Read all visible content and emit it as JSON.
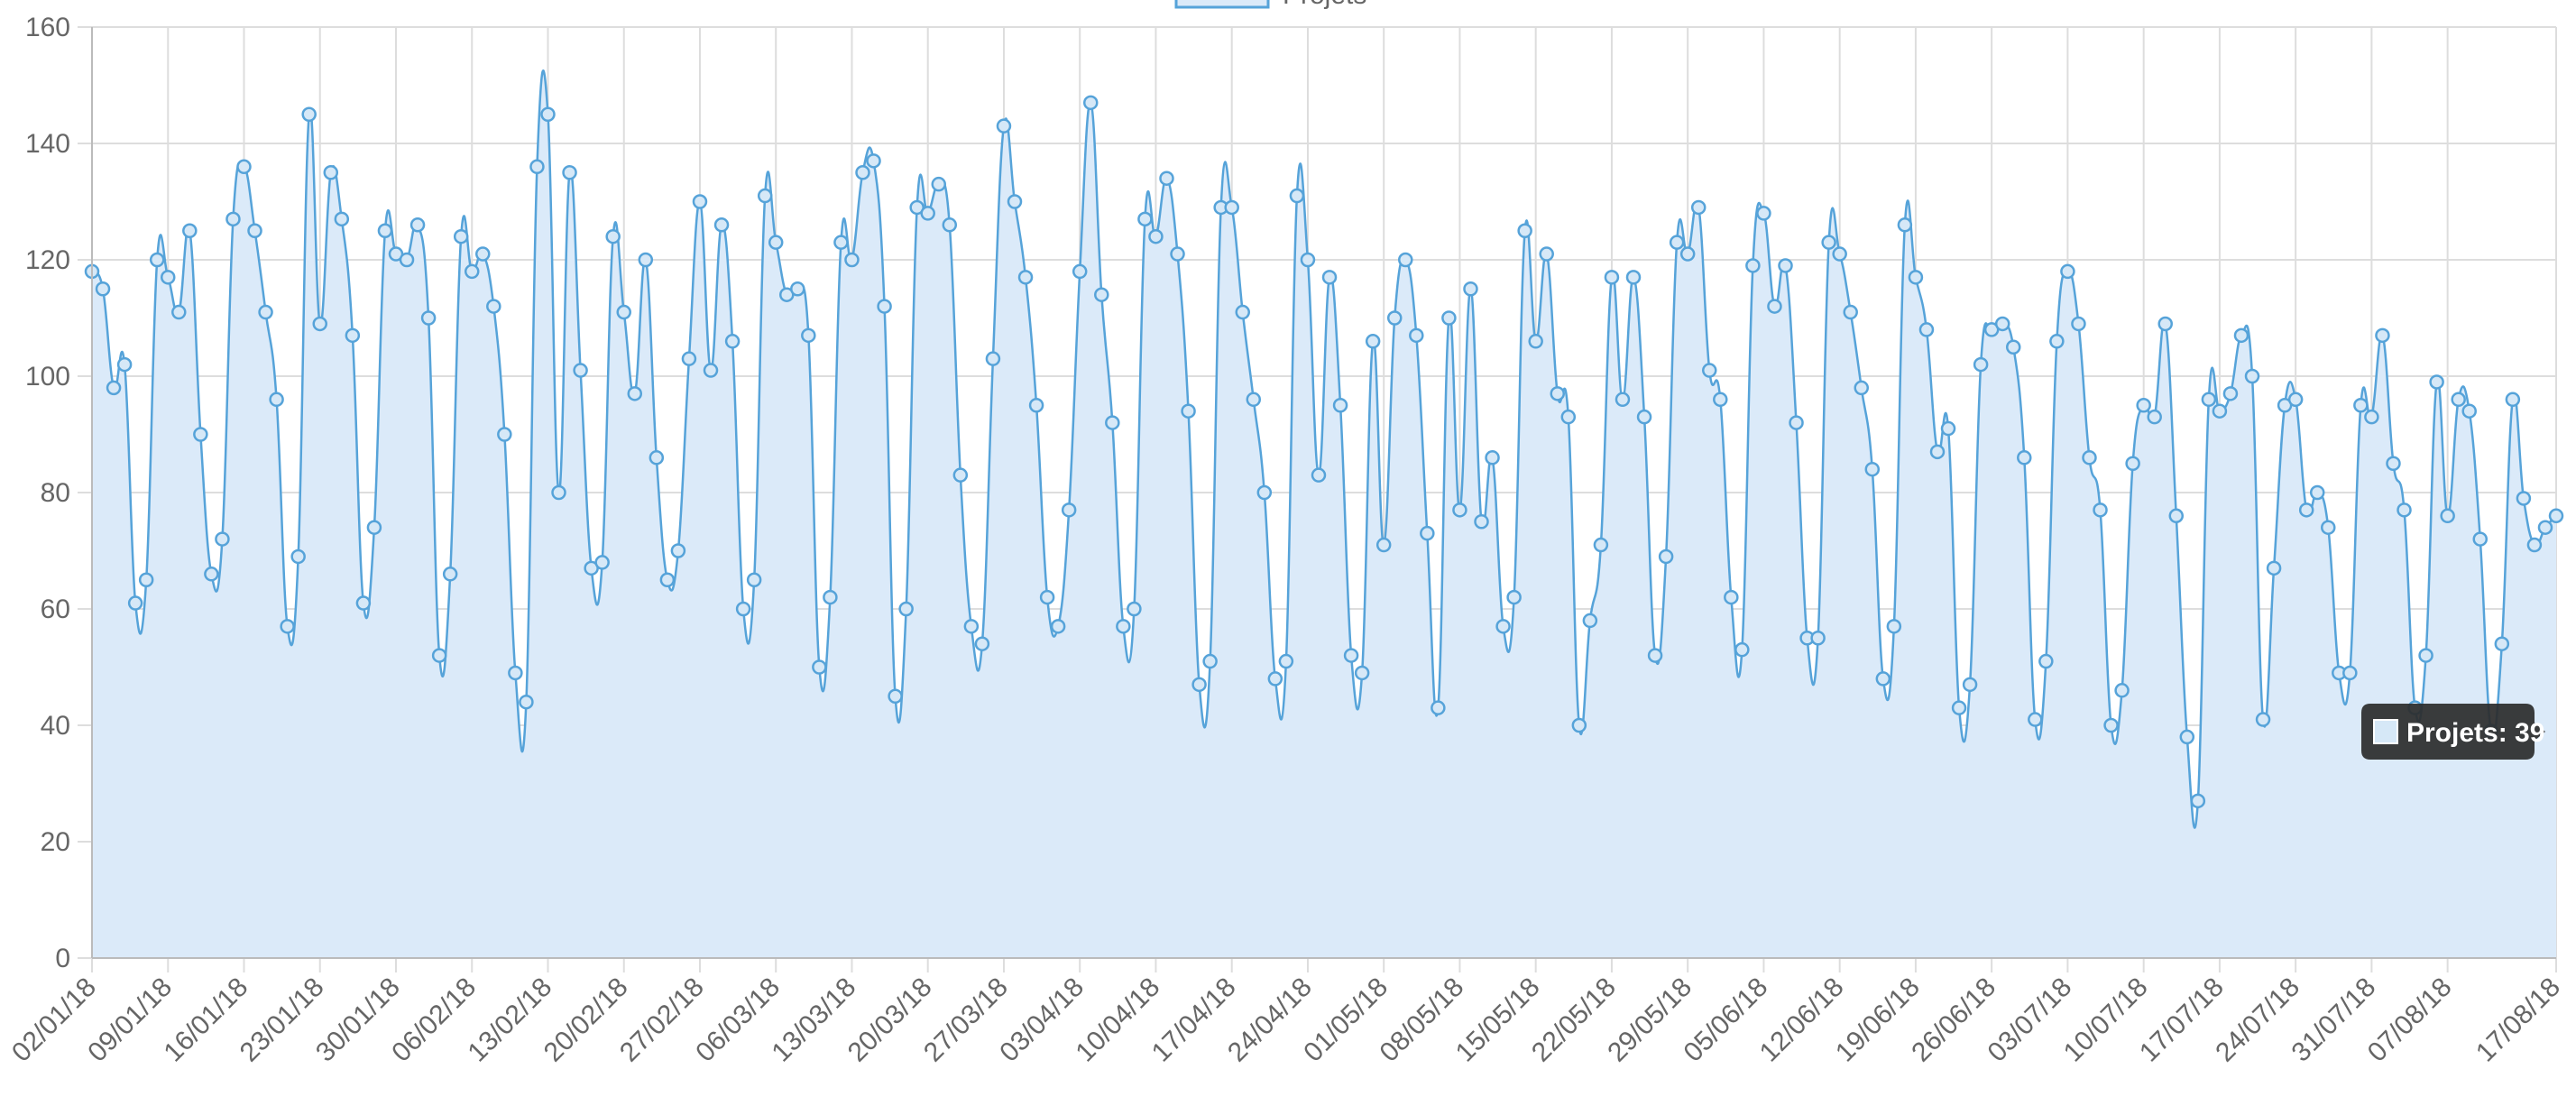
{
  "colors": {
    "line": "#56a3d9",
    "fill": "#dbeaf9",
    "point_fill": "#d6e8f7",
    "grid": "#dddddd",
    "axis_text": "#666666",
    "tooltip_bg": "#2b2b2b",
    "tooltip_text": "#ffffff"
  },
  "legend": {
    "label": "Projets",
    "position": "top-center"
  },
  "tooltip": {
    "text": "Projets: 39"
  },
  "chart_data": {
    "type": "area",
    "series": [
      {
        "name": "Projets",
        "values": [
          118,
          115,
          98,
          102,
          61,
          65,
          120,
          117,
          111,
          125,
          90,
          66,
          72,
          127,
          136,
          125,
          111,
          96,
          57,
          69,
          145,
          109,
          135,
          127,
          107,
          61,
          74,
          125,
          121,
          120,
          126,
          110,
          52,
          66,
          124,
          118,
          121,
          112,
          90,
          49,
          44,
          136,
          145,
          80,
          135,
          101,
          67,
          68,
          124,
          111,
          97,
          120,
          86,
          65,
          70,
          103,
          130,
          101,
          126,
          106,
          60,
          65,
          131,
          123,
          114,
          115,
          107,
          50,
          62,
          123,
          120,
          135,
          137,
          112,
          45,
          60,
          129,
          128,
          133,
          126,
          83,
          57,
          54,
          103,
          143,
          130,
          117,
          95,
          62,
          57,
          77,
          118,
          147,
          114,
          92,
          57,
          60,
          127,
          124,
          134,
          121,
          94,
          47,
          51,
          129,
          129,
          111,
          96,
          80,
          48,
          51,
          131,
          120,
          83,
          117,
          95,
          52,
          49,
          106,
          71,
          110,
          120,
          107,
          73,
          43,
          110,
          77,
          115,
          75,
          86,
          57,
          62,
          125,
          106,
          121,
          97,
          93,
          40,
          58,
          71,
          117,
          96,
          117,
          93,
          52,
          69,
          123,
          121,
          129,
          101,
          96,
          62,
          53,
          119,
          128,
          112,
          119,
          92,
          55,
          55,
          123,
          121,
          111,
          98,
          84,
          48,
          57,
          126,
          117,
          108,
          87,
          91,
          43,
          47,
          102,
          108,
          109,
          105,
          86,
          41,
          51,
          106,
          118,
          109,
          86,
          77,
          40,
          46,
          85,
          95,
          93,
          109,
          76,
          38,
          27,
          96,
          94,
          97,
          107,
          100,
          41,
          67,
          95,
          96,
          77,
          80,
          74,
          49,
          49,
          95,
          93,
          107,
          85,
          77,
          43,
          52,
          99,
          76,
          96,
          94,
          72,
          39,
          54,
          96,
          79,
          71,
          74,
          76
        ]
      }
    ],
    "x_labels": [
      "02/01/18",
      "09/01/18",
      "16/01/18",
      "23/01/18",
      "30/01/18",
      "06/02/18",
      "13/02/18",
      "20/02/18",
      "27/02/18",
      "06/03/18",
      "13/03/18",
      "20/03/18",
      "27/03/18",
      "03/04/18",
      "10/04/18",
      "17/04/18",
      "24/04/18",
      "01/05/18",
      "08/05/18",
      "15/05/18",
      "22/05/18",
      "29/05/18",
      "05/06/18",
      "12/06/18",
      "19/06/18",
      "26/06/18",
      "03/07/18",
      "10/07/18",
      "17/07/18",
      "24/07/18",
      "31/07/18",
      "07/08/18",
      "17/08/18"
    ],
    "y_ticks": [
      0,
      20,
      40,
      60,
      80,
      100,
      120,
      140,
      160
    ],
    "ylim": [
      0,
      160
    ],
    "grid": true
  }
}
